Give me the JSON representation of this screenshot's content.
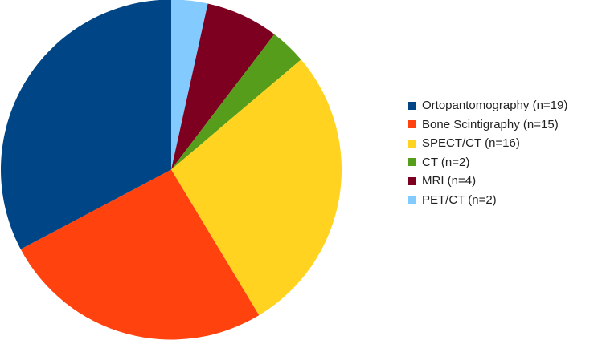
{
  "chart_data": {
    "type": "pie",
    "title": "",
    "legend_position": "right",
    "categories": [
      "Ortopantomography (n=19)",
      "Bone Scintigraphy (n=15)",
      "SPECT/CT (n=16)",
      "CT (n=2)",
      "MRI (n=4)",
      "PET/CT (n=2)"
    ],
    "values": [
      19,
      15,
      16,
      2,
      4,
      2
    ],
    "colors": [
      "#004586",
      "#ff420e",
      "#ffd320",
      "#579d1c",
      "#7e0021",
      "#83caff"
    ],
    "slice_order_clockwise_from_top": [
      5,
      4,
      3,
      2,
      1,
      0
    ]
  }
}
